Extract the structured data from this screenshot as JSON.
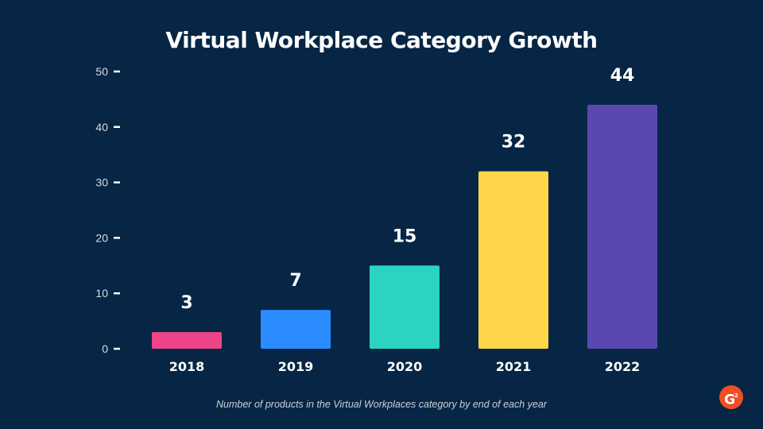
{
  "chart_data": {
    "type": "bar",
    "title": "Virtual Workplace Category Growth",
    "caption": "Number of products in the Virtual Workplaces category by end of each year",
    "xlabel": "",
    "ylabel": "",
    "ylim": [
      0,
      50
    ],
    "yticks": [
      0,
      10,
      20,
      30,
      40,
      50
    ],
    "grid": false,
    "categories": [
      "2018",
      "2019",
      "2020",
      "2021",
      "2022"
    ],
    "values": [
      3,
      7,
      15,
      32,
      44
    ],
    "bar_colors": [
      "#ee4488",
      "#2b8cff",
      "#2ad4c0",
      "#ffd54a",
      "#5a47b0"
    ]
  },
  "branding": {
    "logo_icon": "g2-logo-icon",
    "logo_text": "G",
    "logo_sup": "2",
    "logo_color": "#f04e23"
  }
}
